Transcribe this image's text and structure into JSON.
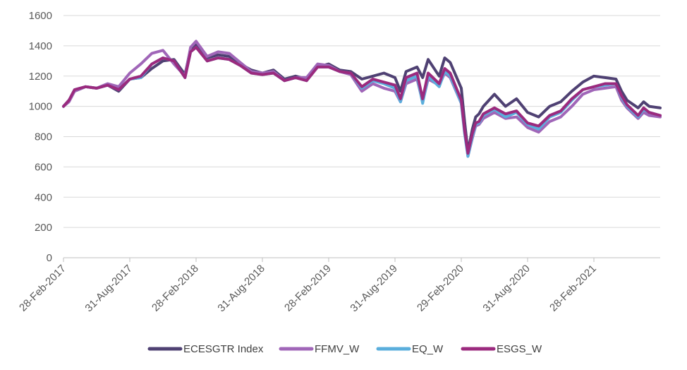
{
  "chart_data": {
    "type": "line",
    "title": "",
    "xlabel": "",
    "ylabel": "",
    "ylim": [
      0,
      1600
    ],
    "yticks": [
      0,
      200,
      400,
      600,
      800,
      1000,
      1200,
      1400,
      1600
    ],
    "grid": true,
    "legend_position": "bottom",
    "x_tick_labels": [
      "28-Feb-2017",
      "31-Aug-2017",
      "28-Feb-2018",
      "31-Aug-2018",
      "28-Feb-2019",
      "31-Aug-2019",
      "29-Feb-2020",
      "31-Aug-2020",
      "28-Feb-2021"
    ],
    "x_domain_months": [
      0,
      54
    ],
    "x_tick_months": [
      0,
      6,
      12,
      18,
      24,
      30,
      36,
      42,
      48
    ],
    "x_months": [
      0,
      0.5,
      1,
      2,
      3,
      4,
      5,
      6,
      7,
      8,
      9,
      10,
      11,
      11.5,
      12,
      13,
      14,
      15,
      16,
      17,
      18,
      19,
      20,
      21,
      22,
      23,
      24,
      25,
      26,
      27,
      28,
      29,
      30,
      30.5,
      31,
      32,
      32.5,
      33,
      34,
      34.5,
      35,
      36,
      36.3,
      36.6,
      37,
      37.3,
      37.6,
      38,
      39,
      40,
      41,
      42,
      43,
      44,
      45,
      46,
      47,
      48,
      49,
      50,
      50.5,
      51,
      52,
      52.5,
      53,
      54
    ],
    "series": [
      {
        "name": "ECESGTR Index",
        "color": "#4f4173",
        "values": [
          1000,
          1040,
          1100,
          1130,
          1120,
          1140,
          1100,
          1180,
          1190,
          1250,
          1300,
          1310,
          1210,
          1380,
          1410,
          1320,
          1340,
          1330,
          1280,
          1240,
          1220,
          1240,
          1180,
          1200,
          1180,
          1260,
          1280,
          1240,
          1230,
          1180,
          1200,
          1220,
          1190,
          1100,
          1230,
          1260,
          1190,
          1310,
          1200,
          1320,
          1290,
          1120,
          900,
          700,
          850,
          930,
          950,
          1000,
          1080,
          1000,
          1050,
          960,
          930,
          1000,
          1030,
          1100,
          1160,
          1200,
          1190,
          1180,
          1100,
          1040,
          990,
          1030,
          1000,
          990
        ]
      },
      {
        "name": "FFMV_W",
        "color": "#a066b8",
        "values": [
          1000,
          1030,
          1100,
          1130,
          1120,
          1150,
          1130,
          1220,
          1280,
          1350,
          1370,
          1280,
          1200,
          1390,
          1430,
          1330,
          1360,
          1350,
          1290,
          1230,
          1220,
          1230,
          1170,
          1190,
          1190,
          1280,
          1270,
          1230,
          1210,
          1100,
          1150,
          1120,
          1100,
          1030,
          1150,
          1180,
          1030,
          1180,
          1140,
          1220,
          1190,
          1020,
          840,
          670,
          790,
          870,
          880,
          920,
          960,
          920,
          930,
          860,
          830,
          900,
          930,
          1000,
          1080,
          1110,
          1120,
          1130,
          1040,
          990,
          920,
          960,
          940,
          930
        ]
      },
      {
        "name": "EQ_W",
        "color": "#5aaedc",
        "values": [
          1000,
          1040,
          1110,
          1130,
          1120,
          1140,
          1110,
          1180,
          1190,
          1280,
          1320,
          1300,
          1190,
          1360,
          1390,
          1300,
          1320,
          1310,
          1270,
          1220,
          1210,
          1220,
          1170,
          1190,
          1170,
          1260,
          1260,
          1230,
          1220,
          1120,
          1170,
          1150,
          1120,
          1030,
          1170,
          1200,
          1020,
          1200,
          1130,
          1230,
          1200,
          1020,
          820,
          670,
          800,
          880,
          890,
          940,
          980,
          930,
          960,
          880,
          850,
          930,
          960,
          1040,
          1110,
          1130,
          1140,
          1150,
          1060,
          1000,
          930,
          980,
          960,
          940
        ]
      },
      {
        "name": "ESGS_W",
        "color": "#9b2a7e",
        "values": [
          1000,
          1040,
          1110,
          1130,
          1120,
          1140,
          1110,
          1180,
          1200,
          1280,
          1320,
          1300,
          1190,
          1360,
          1390,
          1300,
          1320,
          1310,
          1270,
          1220,
          1210,
          1220,
          1170,
          1190,
          1170,
          1260,
          1260,
          1230,
          1220,
          1130,
          1180,
          1160,
          1140,
          1050,
          1190,
          1220,
          1050,
          1220,
          1150,
          1250,
          1220,
          1040,
          840,
          690,
          820,
          890,
          900,
          950,
          990,
          950,
          970,
          890,
          870,
          940,
          970,
          1050,
          1110,
          1130,
          1150,
          1150,
          1070,
          1010,
          940,
          990,
          960,
          940
        ]
      }
    ]
  }
}
